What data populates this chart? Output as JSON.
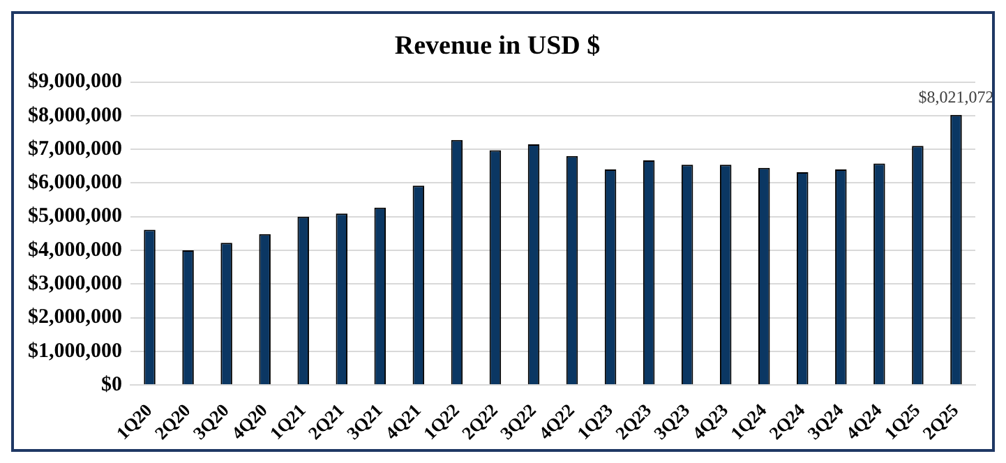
{
  "chart_data": {
    "type": "bar",
    "title": "Revenue in USD $",
    "categories": [
      "1Q20",
      "2Q20",
      "3Q20",
      "4Q20",
      "1Q21",
      "2Q21",
      "3Q21",
      "4Q21",
      "1Q22",
      "2Q22",
      "3Q22",
      "4Q22",
      "1Q23",
      "2Q23",
      "3Q23",
      "4Q23",
      "1Q24",
      "2Q24",
      "3Q24",
      "4Q24",
      "1Q25",
      "2Q25"
    ],
    "values": [
      4610000,
      4000000,
      4220000,
      4480000,
      5000000,
      5090000,
      5270000,
      5920000,
      7280000,
      6970000,
      7150000,
      6800000,
      6400000,
      6670000,
      6540000,
      6540000,
      6450000,
      6320000,
      6400000,
      6580000,
      7100000,
      8021072
    ],
    "value_labels": [
      null,
      null,
      null,
      null,
      null,
      null,
      null,
      null,
      null,
      null,
      null,
      null,
      null,
      null,
      null,
      null,
      null,
      null,
      null,
      null,
      null,
      "$8,021,072"
    ],
    "color": "#0b3763",
    "ylim": [
      0,
      9000000
    ],
    "yticks": [
      {
        "value": 0,
        "label": "$0"
      },
      {
        "value": 1000000,
        "label": "$1,000,000"
      },
      {
        "value": 2000000,
        "label": "$2,000,000"
      },
      {
        "value": 3000000,
        "label": "$3,000,000"
      },
      {
        "value": 4000000,
        "label": "$4,000,000"
      },
      {
        "value": 5000000,
        "label": "$5,000,000"
      },
      {
        "value": 6000000,
        "label": "$6,000,000"
      },
      {
        "value": 7000000,
        "label": "$7,000,000"
      },
      {
        "value": 8000000,
        "label": "$8,000,000"
      },
      {
        "value": 9000000,
        "label": "$9,000,000"
      }
    ],
    "grid": "y",
    "legend": false
  }
}
